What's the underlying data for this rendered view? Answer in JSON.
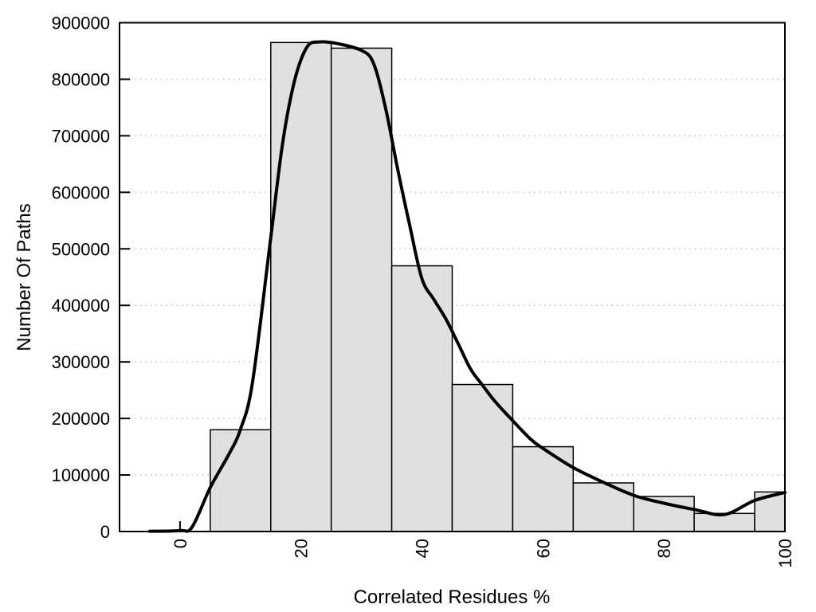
{
  "figure": {
    "background": "#ffffff",
    "title": ""
  },
  "chart_data": {
    "type": "bar",
    "subtype": "histogram-with-smoothed-curve",
    "title": "",
    "xlabel": "Correlated Residues %",
    "ylabel": "Number Of Paths",
    "xlim": [
      -10,
      100
    ],
    "ylim": [
      0,
      900000
    ],
    "x_ticks": [
      0,
      20,
      40,
      60,
      80,
      100
    ],
    "y_ticks": [
      0,
      100000,
      200000,
      300000,
      400000,
      500000,
      600000,
      700000,
      800000,
      900000
    ],
    "grid": {
      "horizontal": true,
      "vertical": false,
      "style": "dotted"
    },
    "legend": "none",
    "bin_width": 10,
    "categories": [
      10,
      20,
      30,
      40,
      50,
      60,
      70,
      80,
      90,
      100
    ],
    "values": [
      180000,
      865000,
      855000,
      470000,
      260000,
      150000,
      86000,
      62000,
      32000,
      70000
    ],
    "bars": [
      {
        "bin_start": 5,
        "bin_end": 15,
        "center": 10,
        "value": 180000
      },
      {
        "bin_start": 15,
        "bin_end": 25,
        "center": 20,
        "value": 865000
      },
      {
        "bin_start": 25,
        "bin_end": 35,
        "center": 30,
        "value": 855000
      },
      {
        "bin_start": 35,
        "bin_end": 45,
        "center": 40,
        "value": 470000
      },
      {
        "bin_start": 45,
        "bin_end": 55,
        "center": 50,
        "value": 260000
      },
      {
        "bin_start": 55,
        "bin_end": 65,
        "center": 60,
        "value": 150000
      },
      {
        "bin_start": 65,
        "bin_end": 75,
        "center": 70,
        "value": 86000
      },
      {
        "bin_start": 75,
        "bin_end": 85,
        "center": 80,
        "value": 62000
      },
      {
        "bin_start": 85,
        "bin_end": 95,
        "center": 90,
        "value": 32000
      },
      {
        "bin_start": 95,
        "bin_end": 100,
        "center": 100,
        "value": 70000,
        "clipped_at_xmax": true
      }
    ],
    "curve": {
      "description": "thick black smoothed frequency curve",
      "points": [
        [
          -5,
          500
        ],
        [
          0,
          1500
        ],
        [
          2,
          8000
        ],
        [
          5,
          78000
        ],
        [
          8,
          135000
        ],
        [
          10,
          181000
        ],
        [
          12,
          265000
        ],
        [
          15,
          520000
        ],
        [
          17,
          690000
        ],
        [
          19,
          800000
        ],
        [
          21,
          857000
        ],
        [
          23,
          866000
        ],
        [
          26,
          863000
        ],
        [
          30,
          851000
        ],
        [
          32,
          828000
        ],
        [
          34,
          748000
        ],
        [
          36,
          640000
        ],
        [
          38,
          540000
        ],
        [
          40,
          447000
        ],
        [
          42,
          410000
        ],
        [
          44,
          375000
        ],
        [
          46,
          332000
        ],
        [
          48,
          288000
        ],
        [
          50,
          259000
        ],
        [
          52,
          231000
        ],
        [
          55,
          196000
        ],
        [
          58,
          163000
        ],
        [
          60,
          147000
        ],
        [
          65,
          113000
        ],
        [
          70,
          87000
        ],
        [
          75,
          64000
        ],
        [
          80,
          50000
        ],
        [
          85,
          39000
        ],
        [
          90,
          30000
        ],
        [
          95,
          55000
        ],
        [
          100,
          69000
        ]
      ]
    },
    "colors": {
      "bar_fill": "#e0e0e0",
      "bar_edge": "#000000",
      "curve": "#000000",
      "axis": "#000000",
      "gridline": "#c0c0c0",
      "background": "#ffffff"
    }
  }
}
